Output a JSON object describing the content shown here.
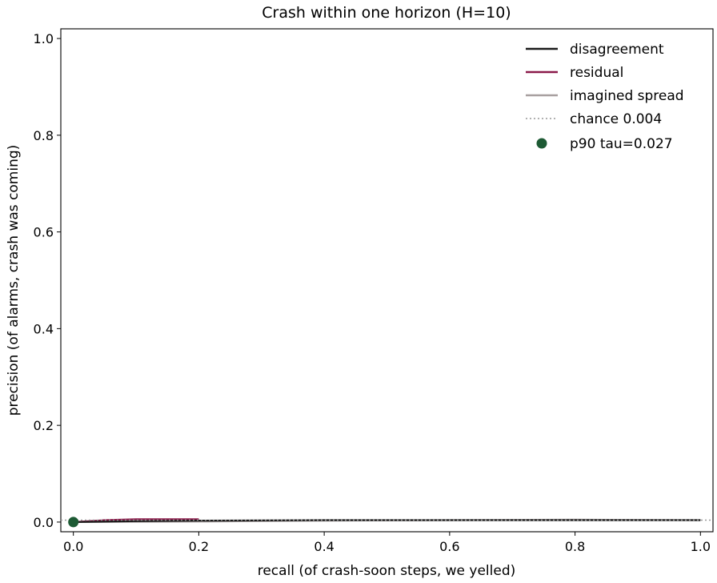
{
  "chart_data": {
    "type": "line",
    "title": "Crash within one horizon (H=10)",
    "xlabel": "recall (of crash-soon steps, we yelled)",
    "ylabel": "precision (of alarms, crash was coming)",
    "xlim": [
      -0.02,
      1.02
    ],
    "ylim": [
      -0.02,
      1.02
    ],
    "xticks": [
      0.0,
      0.2,
      0.4,
      0.6,
      0.8,
      1.0
    ],
    "yticks": [
      0.0,
      0.2,
      0.4,
      0.6,
      0.8,
      1.0
    ],
    "xtick_labels": [
      "0.0",
      "0.2",
      "0.4",
      "0.6",
      "0.8",
      "1.0"
    ],
    "ytick_labels": [
      "0.0",
      "0.2",
      "0.4",
      "0.6",
      "0.8",
      "1.0"
    ],
    "grid": false,
    "legend_position": "top-right",
    "series": [
      {
        "name": "disagreement",
        "color": "#1a1a1a",
        "style": "solid",
        "x": [
          0.0,
          0.1,
          0.2,
          0.4,
          0.6,
          0.8,
          1.0
        ],
        "y": [
          0.0,
          0.002,
          0.003,
          0.004,
          0.004,
          0.004,
          0.004
        ]
      },
      {
        "name": "residual",
        "color": "#8b1a4a",
        "style": "solid",
        "x": [
          0.0,
          0.05,
          0.1,
          0.15,
          0.2
        ],
        "y": [
          0.0,
          0.004,
          0.006,
          0.006,
          0.006
        ]
      },
      {
        "name": "imagined spread",
        "color": "#a8a0a0",
        "style": "solid",
        "x": [
          0.0,
          0.2,
          0.4,
          0.6,
          0.8,
          1.0
        ],
        "y": [
          0.0,
          0.001,
          0.003,
          0.004,
          0.005,
          0.004
        ]
      },
      {
        "name": "chance 0.004",
        "color": "#999999",
        "style": "dotted",
        "x": [
          -0.02,
          1.02
        ],
        "y": [
          0.004,
          0.004
        ]
      }
    ],
    "markers": [
      {
        "name": "p90 tau=0.027",
        "color": "#1d5a34",
        "x": 0.0,
        "y": 0.0
      }
    ]
  }
}
